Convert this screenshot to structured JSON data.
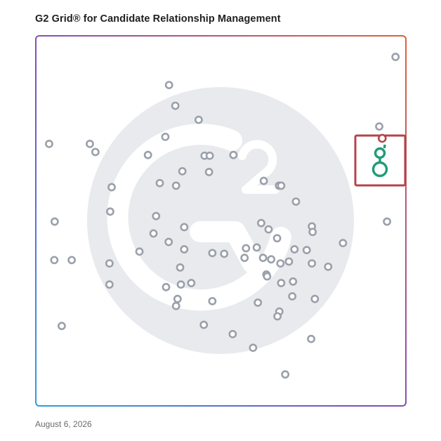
{
  "title": "G2 Grid® for Candidate Relationship Management",
  "date": "August 6, 2026",
  "colors": {
    "frame_left": "#2f7bd8",
    "frame_top": "#9d4aa5",
    "frame_right": "#e05a3a",
    "frame_bottom": "#7a48b8",
    "quad_line_h": "#c7454f",
    "quad_line_v": "#7d5bb8",
    "dot": "#9aa0aa",
    "highlight_box": "#b5444c",
    "logo_green": "#1f9c77",
    "watermark": "#e9eaee"
  },
  "icons": {
    "watermark": "g2-logo-icon",
    "highlight": "product-logo-icon"
  },
  "chart_data": {
    "type": "scatter",
    "title": "G2 Grid® for Candidate Relationship Management",
    "xlabel": "",
    "ylabel": "",
    "xlim": [
      0,
      100
    ],
    "ylim": [
      0,
      100
    ],
    "grid": false,
    "quadrant_dividers": {
      "x": 50,
      "y": 50
    },
    "points": [
      [
        97.2,
        94.3
      ],
      [
        36.0,
        86.7
      ],
      [
        37.7,
        81.1
      ],
      [
        44.0,
        77.3
      ],
      [
        92.8,
        75.5
      ],
      [
        3.6,
        70.8
      ],
      [
        14.6,
        70.8
      ],
      [
        16.1,
        68.6
      ],
      [
        35.0,
        72.7
      ],
      [
        30.3,
        67.8
      ],
      [
        45.6,
        67.6
      ],
      [
        47.0,
        67.6
      ],
      [
        53.4,
        67.8
      ],
      [
        39.6,
        63.4
      ],
      [
        46.8,
        63.2
      ],
      [
        61.6,
        60.8
      ],
      [
        65.7,
        59.5
      ],
      [
        66.3,
        59.5
      ],
      [
        20.5,
        59.1
      ],
      [
        33.5,
        60.2
      ],
      [
        37.9,
        59.5
      ],
      [
        70.3,
        55.2
      ],
      [
        20.1,
        52.5
      ],
      [
        32.5,
        51.3
      ],
      [
        5.1,
        49.8
      ],
      [
        94.9,
        49.8
      ],
      [
        40.1,
        48.3
      ],
      [
        60.9,
        49.4
      ],
      [
        74.6,
        48.5
      ],
      [
        74.8,
        47.0
      ],
      [
        62.9,
        47.7
      ],
      [
        31.8,
        46.6
      ],
      [
        65.2,
        45.3
      ],
      [
        83.0,
        44.0
      ],
      [
        35.9,
        44.3
      ],
      [
        40.1,
        42.3
      ],
      [
        28.0,
        41.7
      ],
      [
        47.7,
        41.3
      ],
      [
        50.9,
        41.1
      ],
      [
        56.8,
        42.6
      ],
      [
        59.7,
        42.8
      ],
      [
        69.9,
        42.3
      ],
      [
        73.2,
        42.1
      ],
      [
        5.0,
        39.4
      ],
      [
        9.7,
        39.4
      ],
      [
        19.9,
        38.5
      ],
      [
        56.4,
        40.0
      ],
      [
        61.4,
        40.0
      ],
      [
        63.6,
        39.6
      ],
      [
        66.1,
        38.5
      ],
      [
        68.4,
        39.0
      ],
      [
        74.6,
        38.5
      ],
      [
        79.0,
        37.6
      ],
      [
        39.0,
        37.4
      ],
      [
        62.3,
        35.5
      ],
      [
        62.5,
        35.0
      ],
      [
        69.5,
        33.6
      ],
      [
        19.9,
        32.8
      ],
      [
        35.2,
        32.1
      ],
      [
        39.2,
        32.8
      ],
      [
        42.0,
        33.2
      ],
      [
        66.3,
        33.2
      ],
      [
        69.3,
        29.6
      ],
      [
        38.3,
        28.9
      ],
      [
        47.7,
        28.3
      ],
      [
        60.0,
        27.9
      ],
      [
        75.4,
        28.9
      ],
      [
        37.9,
        27.0
      ],
      [
        65.8,
        25.5
      ],
      [
        65.3,
        24.2
      ],
      [
        7.0,
        21.6
      ],
      [
        45.4,
        21.9
      ],
      [
        53.2,
        19.4
      ],
      [
        74.4,
        18.1
      ],
      [
        58.7,
        15.7
      ],
      [
        67.4,
        8.5
      ]
    ],
    "highlight_point": [
      93.6,
      72.3
    ]
  }
}
